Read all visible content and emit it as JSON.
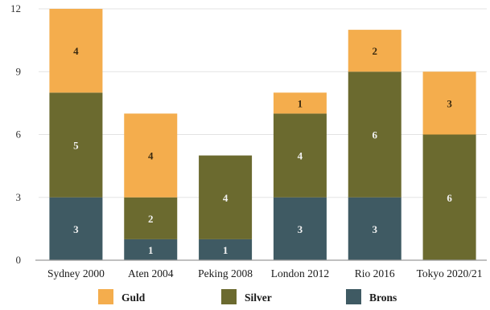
{
  "chart_data": {
    "type": "bar",
    "stacked": true,
    "categories": [
      "Sydney 2000",
      "Aten 2004",
      "Peking 2008",
      "London 2012",
      "Rio 2016",
      "Tokyo 2020/21"
    ],
    "series": [
      {
        "name": "Brons",
        "color": "#3f5a63",
        "values": [
          3,
          1,
          1,
          3,
          3,
          0
        ]
      },
      {
        "name": "Silver",
        "color": "#6b6a2f",
        "values": [
          5,
          2,
          4,
          4,
          6,
          6
        ]
      },
      {
        "name": "Guld",
        "color": "#f4ad4d",
        "values": [
          4,
          4,
          0,
          1,
          2,
          3
        ]
      }
    ],
    "legend_order": [
      "Guld",
      "Silver",
      "Brons"
    ],
    "legend_position": "bottom",
    "ylim": [
      0,
      12
    ],
    "yticks": [
      0,
      3,
      6,
      9,
      12
    ],
    "grid": true,
    "title": "",
    "xlabel": "",
    "ylabel": ""
  }
}
